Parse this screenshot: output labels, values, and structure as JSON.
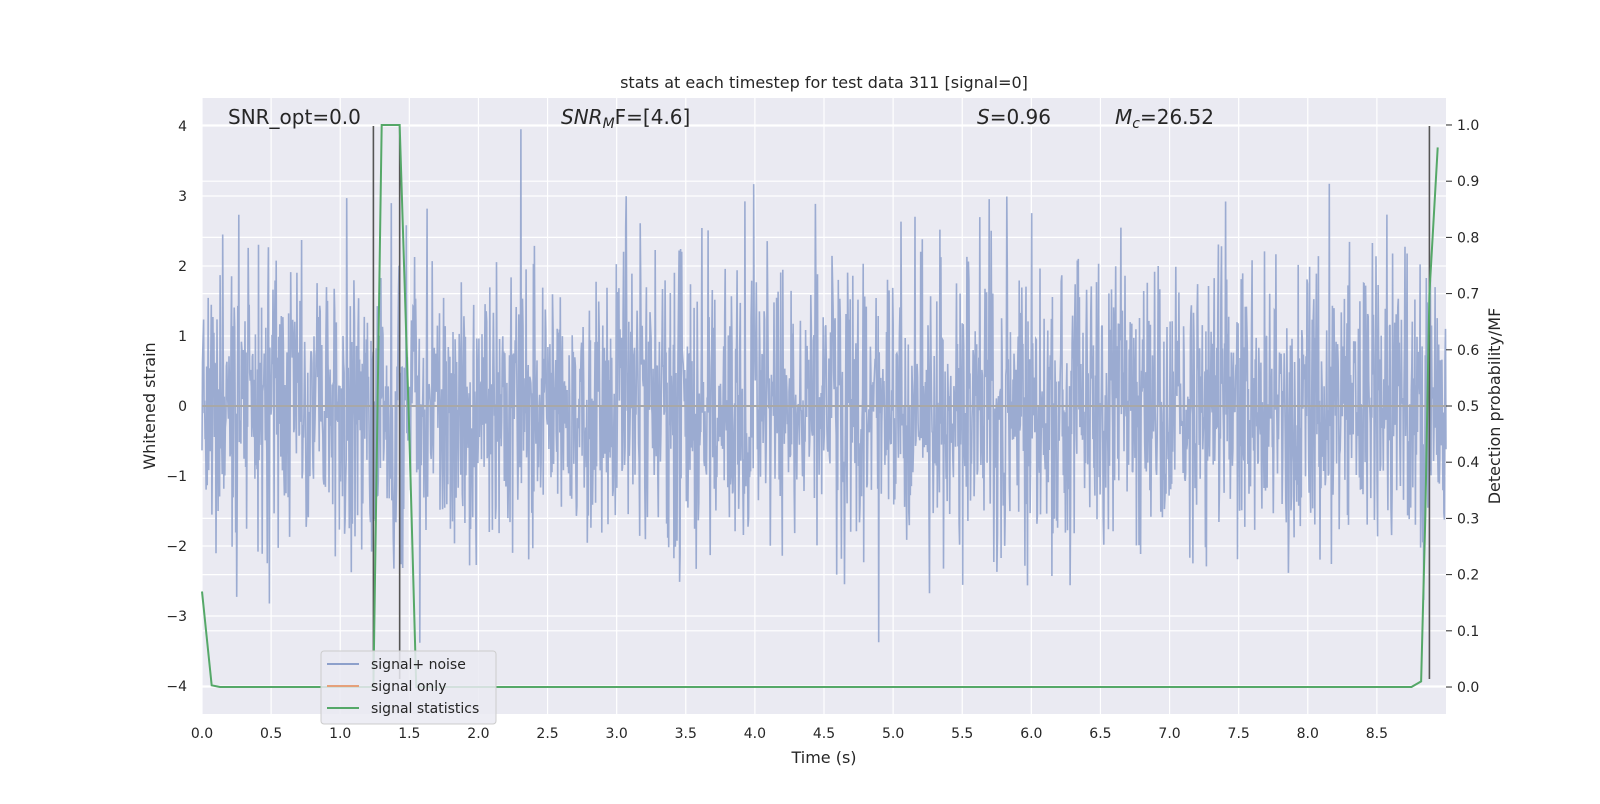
{
  "chart_data": {
    "type": "line",
    "title": "stats at each timestep for test data 311 [signal=0]",
    "xlabel": "Time (s)",
    "ylabel_left": "Whitened strain",
    "ylabel_right": "Detection probability/MF",
    "xlim": [
      0.0,
      9.0
    ],
    "ylim_left": [
      -4.4,
      4.4
    ],
    "ylim_right": [
      -0.048,
      1.048
    ],
    "x_ticks": [
      "0.0",
      "0.5",
      "1.0",
      "1.5",
      "2.0",
      "2.5",
      "3.0",
      "3.5",
      "4.0",
      "4.5",
      "5.0",
      "5.5",
      "6.0",
      "6.5",
      "7.0",
      "7.5",
      "8.0",
      "8.5"
    ],
    "y_left_ticks": [
      "4",
      "3",
      "2",
      "1",
      "0",
      "−1",
      "−2",
      "−3",
      "−4"
    ],
    "y_right_ticks": [
      "1.0",
      "0.9",
      "0.8",
      "0.7",
      "0.6",
      "0.5",
      "0.4",
      "0.3",
      "0.2",
      "0.1",
      "0.0"
    ],
    "grid": true,
    "legend_position": "lower-left",
    "annotations": {
      "snr_opt": "SNR_opt=0.0",
      "snr_mf_main": "SNR",
      "snr_mf_sub": "M",
      "snr_mf_rest": "F=[4.6]",
      "s_var": "S",
      "s_rest": "=0.96",
      "mc_var": "M",
      "mc_sub": "c",
      "mc_rest": "=26.52"
    },
    "markers_x": [
      1.24,
      1.43,
      8.88
    ],
    "series": [
      {
        "name": "signal+ noise",
        "axis": "left",
        "color": "#8da0cb",
        "description_values": "whitened noisy strain, roughly uniform amplitude between about -2.5 and 2.5 with spikes to ±4 across 0–9 s"
      },
      {
        "name": "signal only",
        "axis": "left",
        "color": "#e5a07a",
        "x": [
          0.0,
          9.0
        ],
        "y": [
          0.0,
          0.0
        ]
      },
      {
        "name": "signal statistics",
        "axis": "right",
        "color": "#55a868",
        "x": [
          0.0,
          0.07,
          0.13,
          1.24,
          1.3,
          1.4,
          1.43,
          1.5,
          1.55,
          1.6,
          8.75,
          8.82,
          8.85,
          8.88,
          8.94
        ],
        "y": [
          0.17,
          0.003,
          0.0,
          0.0,
          1.0,
          1.0,
          1.0,
          0.45,
          0.0,
          0.0,
          0.0,
          0.01,
          0.3,
          0.7,
          0.96
        ]
      }
    ],
    "colors": {
      "plot_bg": "#eaeaf2",
      "grid": "#ffffff",
      "noise": "#8da0cb",
      "signal": "#e5a07a",
      "stats": "#55a868",
      "marker": "#555555",
      "zero_line": "#a8a8a8"
    }
  }
}
